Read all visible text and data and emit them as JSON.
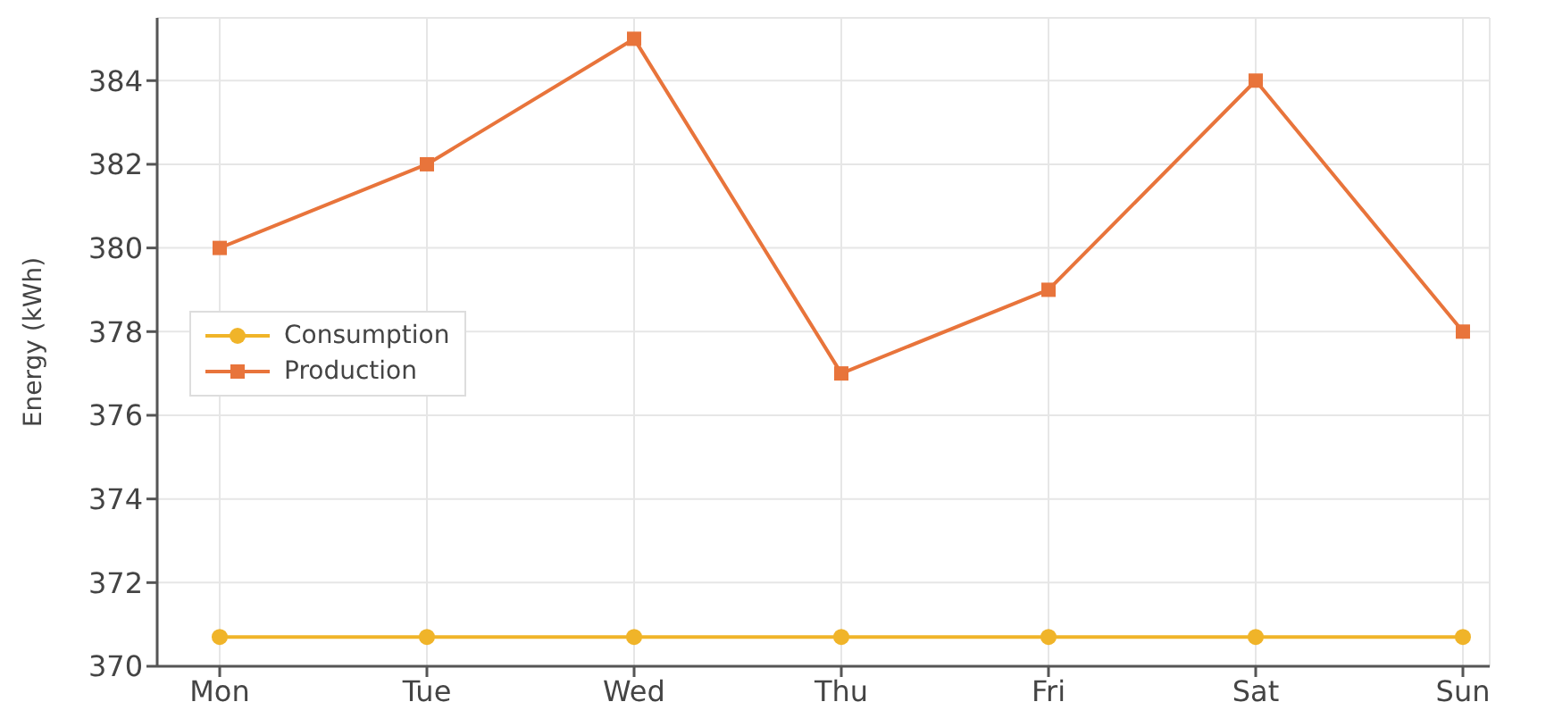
{
  "chart_data": {
    "type": "line",
    "ylabel": "Energy (kWh)",
    "categories": [
      "Mon",
      "Tue",
      "Wed",
      "Thu",
      "Fri",
      "Sat",
      "Sun"
    ],
    "series": [
      {
        "name": "Consumption",
        "color": "#f0b429",
        "marker": "circle",
        "values": [
          370.7,
          370.7,
          370.7,
          370.7,
          370.7,
          370.7,
          370.7
        ]
      },
      {
        "name": "Production",
        "color": "#e8743b",
        "marker": "square",
        "values": [
          380,
          382,
          385,
          377,
          379,
          384,
          378
        ]
      }
    ],
    "ylim": [
      370,
      385.5
    ],
    "yticks": [
      370,
      372,
      374,
      376,
      378,
      380,
      382,
      384
    ],
    "grid": true,
    "legend": "left",
    "line_style": "solid"
  }
}
